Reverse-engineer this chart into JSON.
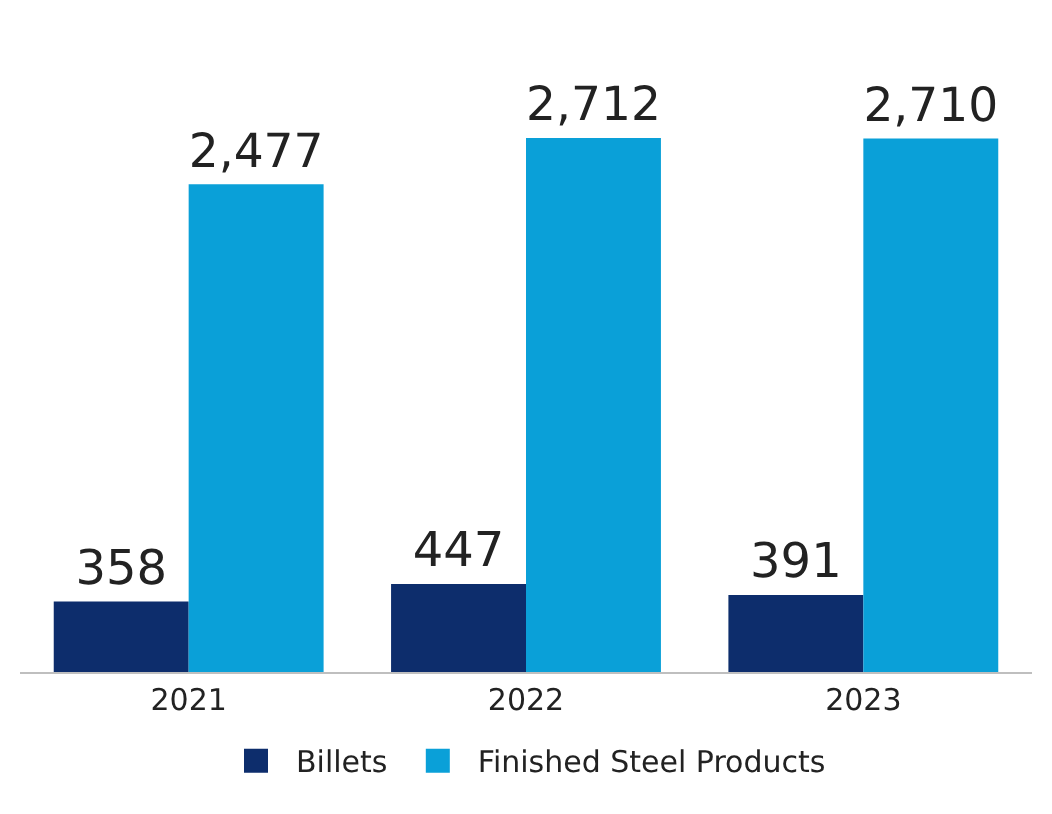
{
  "chart_data": {
    "type": "bar",
    "categories": [
      "2021",
      "2022",
      "2023"
    ],
    "series": [
      {
        "name": "Billets",
        "color": "#0d2d6c",
        "values": [
          358,
          447,
          391
        ],
        "value_labels": [
          "358",
          "447",
          "391"
        ]
      },
      {
        "name": "Finished Steel Products",
        "color": "#0aa0d8",
        "values": [
          2477,
          2712,
          2710
        ],
        "value_labels": [
          "2,477",
          "2,712",
          "2,710"
        ]
      }
    ],
    "legend": "bottom"
  }
}
